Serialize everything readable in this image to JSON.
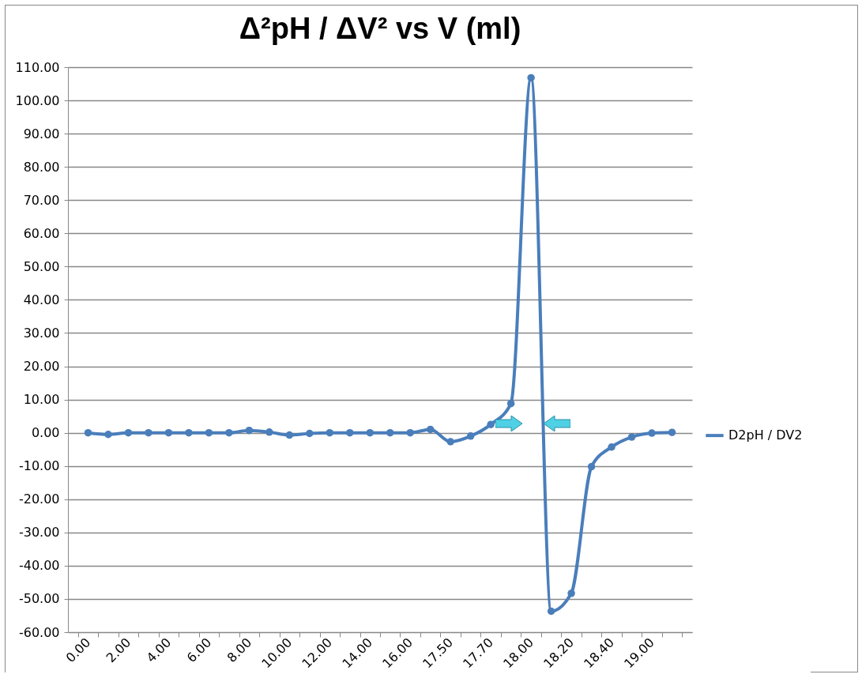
{
  "chart_data": {
    "type": "line",
    "title": "Δ²pH / ΔV² vs V (ml)",
    "categories": [
      "0.00",
      null,
      "2.00",
      null,
      "4.00",
      null,
      "6.00",
      null,
      "8.00",
      null,
      "10.00",
      null,
      "12.00",
      null,
      "14.00",
      null,
      "16.00",
      null,
      "17.50",
      null,
      "17.70",
      null,
      "18.00",
      null,
      "18.20",
      null,
      "18.40",
      null,
      "19.00",
      null
    ],
    "series": [
      {
        "name": "D2pH / DV2",
        "color": "#4a7ebb",
        "values": [
          0,
          -0.5,
          0,
          0,
          0,
          0,
          0,
          0,
          0.7,
          0.2,
          -0.7,
          -0.2,
          0,
          0,
          0,
          0,
          0,
          1.0,
          -2.7,
          -1.0,
          2.5,
          8.8,
          106.8,
          -53.7,
          -48.3,
          -10.2,
          -4.3,
          -1.3,
          -0.1,
          0.1
        ]
      }
    ],
    "ylim": [
      -60,
      110
    ],
    "yticks": [
      {
        "value": -60,
        "label": "-60.00"
      },
      {
        "value": -50,
        "label": "-50.00"
      },
      {
        "value": -40,
        "label": "-40.00"
      },
      {
        "value": -30,
        "label": "-30.00"
      },
      {
        "value": -20,
        "label": "-20.00"
      },
      {
        "value": -10,
        "label": "-10.00"
      },
      {
        "value": 0,
        "label": "0.00"
      },
      {
        "value": 10,
        "label": "10.00"
      },
      {
        "value": 20,
        "label": "20.00"
      },
      {
        "value": 30,
        "label": "30.00"
      },
      {
        "value": 40,
        "label": "40.00"
      },
      {
        "value": 50,
        "label": "50.00"
      },
      {
        "value": 60,
        "label": "60.00"
      },
      {
        "value": 70,
        "label": "70.00"
      },
      {
        "value": 80,
        "label": "80.00"
      },
      {
        "value": 90,
        "label": "90.00"
      },
      {
        "value": 100,
        "label": "100.00"
      },
      {
        "value": 110,
        "label": "110.00"
      }
    ],
    "grid": "y",
    "legend": "right",
    "marker": "circle",
    "line_style": "solid"
  }
}
